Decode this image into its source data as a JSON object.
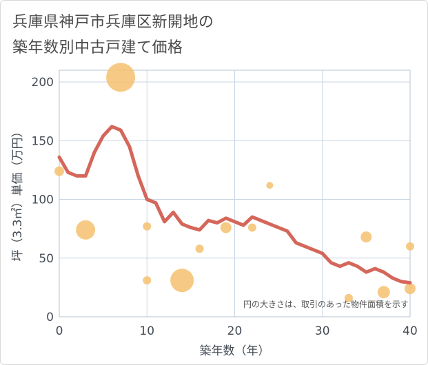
{
  "title": {
    "line1": "兵庫県神戸市兵庫区新開地の",
    "line2": "築年数別中古戸建て価格"
  },
  "note": "円の大きさは、取引のあった物件面積を示す",
  "colors": {
    "line": "#d4675a",
    "bubble": "#f5c16f",
    "grid": "#c9d6e3",
    "plot_border": "#b4c3d1"
  },
  "chart_data": {
    "type": "scatter",
    "xlabel": "築年数（年）",
    "ylabel": "坪（3.3㎡）単価（万円）",
    "xlim": [
      0,
      40
    ],
    "ylim": [
      0,
      210
    ],
    "x_ticks": [
      "0",
      "10",
      "20",
      "30",
      "40"
    ],
    "y_ticks": [
      "0",
      "50",
      "100",
      "150",
      "200"
    ],
    "grid": true,
    "series": [
      {
        "type": "line",
        "points": [
          [
            0,
            136
          ],
          [
            1,
            123
          ],
          [
            2,
            120
          ],
          [
            3,
            120
          ],
          [
            4,
            140
          ],
          [
            5,
            154
          ],
          [
            6,
            162
          ],
          [
            7,
            159
          ],
          [
            8,
            145
          ],
          [
            9,
            120
          ],
          [
            10,
            100
          ],
          [
            11,
            97
          ],
          [
            12,
            81
          ],
          [
            13,
            89
          ],
          [
            14,
            79
          ],
          [
            15,
            76
          ],
          [
            16,
            74
          ],
          [
            17,
            82
          ],
          [
            18,
            80
          ],
          [
            19,
            84
          ],
          [
            20,
            81
          ],
          [
            21,
            78
          ],
          [
            22,
            85
          ],
          [
            23,
            82
          ],
          [
            24,
            79
          ],
          [
            25,
            76
          ],
          [
            26,
            73
          ],
          [
            27,
            63
          ],
          [
            28,
            60
          ],
          [
            29,
            57
          ],
          [
            30,
            54
          ],
          [
            31,
            46
          ],
          [
            32,
            43
          ],
          [
            33,
            46
          ],
          [
            34,
            43
          ],
          [
            35,
            38
          ],
          [
            36,
            41
          ],
          [
            37,
            38
          ],
          [
            38,
            33
          ],
          [
            39,
            30
          ],
          [
            40,
            29
          ]
        ]
      },
      {
        "type": "bubble",
        "points": [
          {
            "x": 0,
            "y": 124,
            "size": 7
          },
          {
            "x": 3,
            "y": 74,
            "size": 14
          },
          {
            "x": 7,
            "y": 204,
            "size": 21
          },
          {
            "x": 10,
            "y": 77,
            "size": 6
          },
          {
            "x": 10,
            "y": 31,
            "size": 6
          },
          {
            "x": 14,
            "y": 31,
            "size": 17
          },
          {
            "x": 16,
            "y": 58,
            "size": 6
          },
          {
            "x": 19,
            "y": 76,
            "size": 8
          },
          {
            "x": 22,
            "y": 76,
            "size": 6
          },
          {
            "x": 24,
            "y": 112,
            "size": 5
          },
          {
            "x": 33,
            "y": 16,
            "size": 6
          },
          {
            "x": 35,
            "y": 68,
            "size": 8
          },
          {
            "x": 37,
            "y": 21,
            "size": 9
          },
          {
            "x": 40,
            "y": 60,
            "size": 6
          },
          {
            "x": 40,
            "y": 24,
            "size": 8
          }
        ]
      }
    ]
  }
}
